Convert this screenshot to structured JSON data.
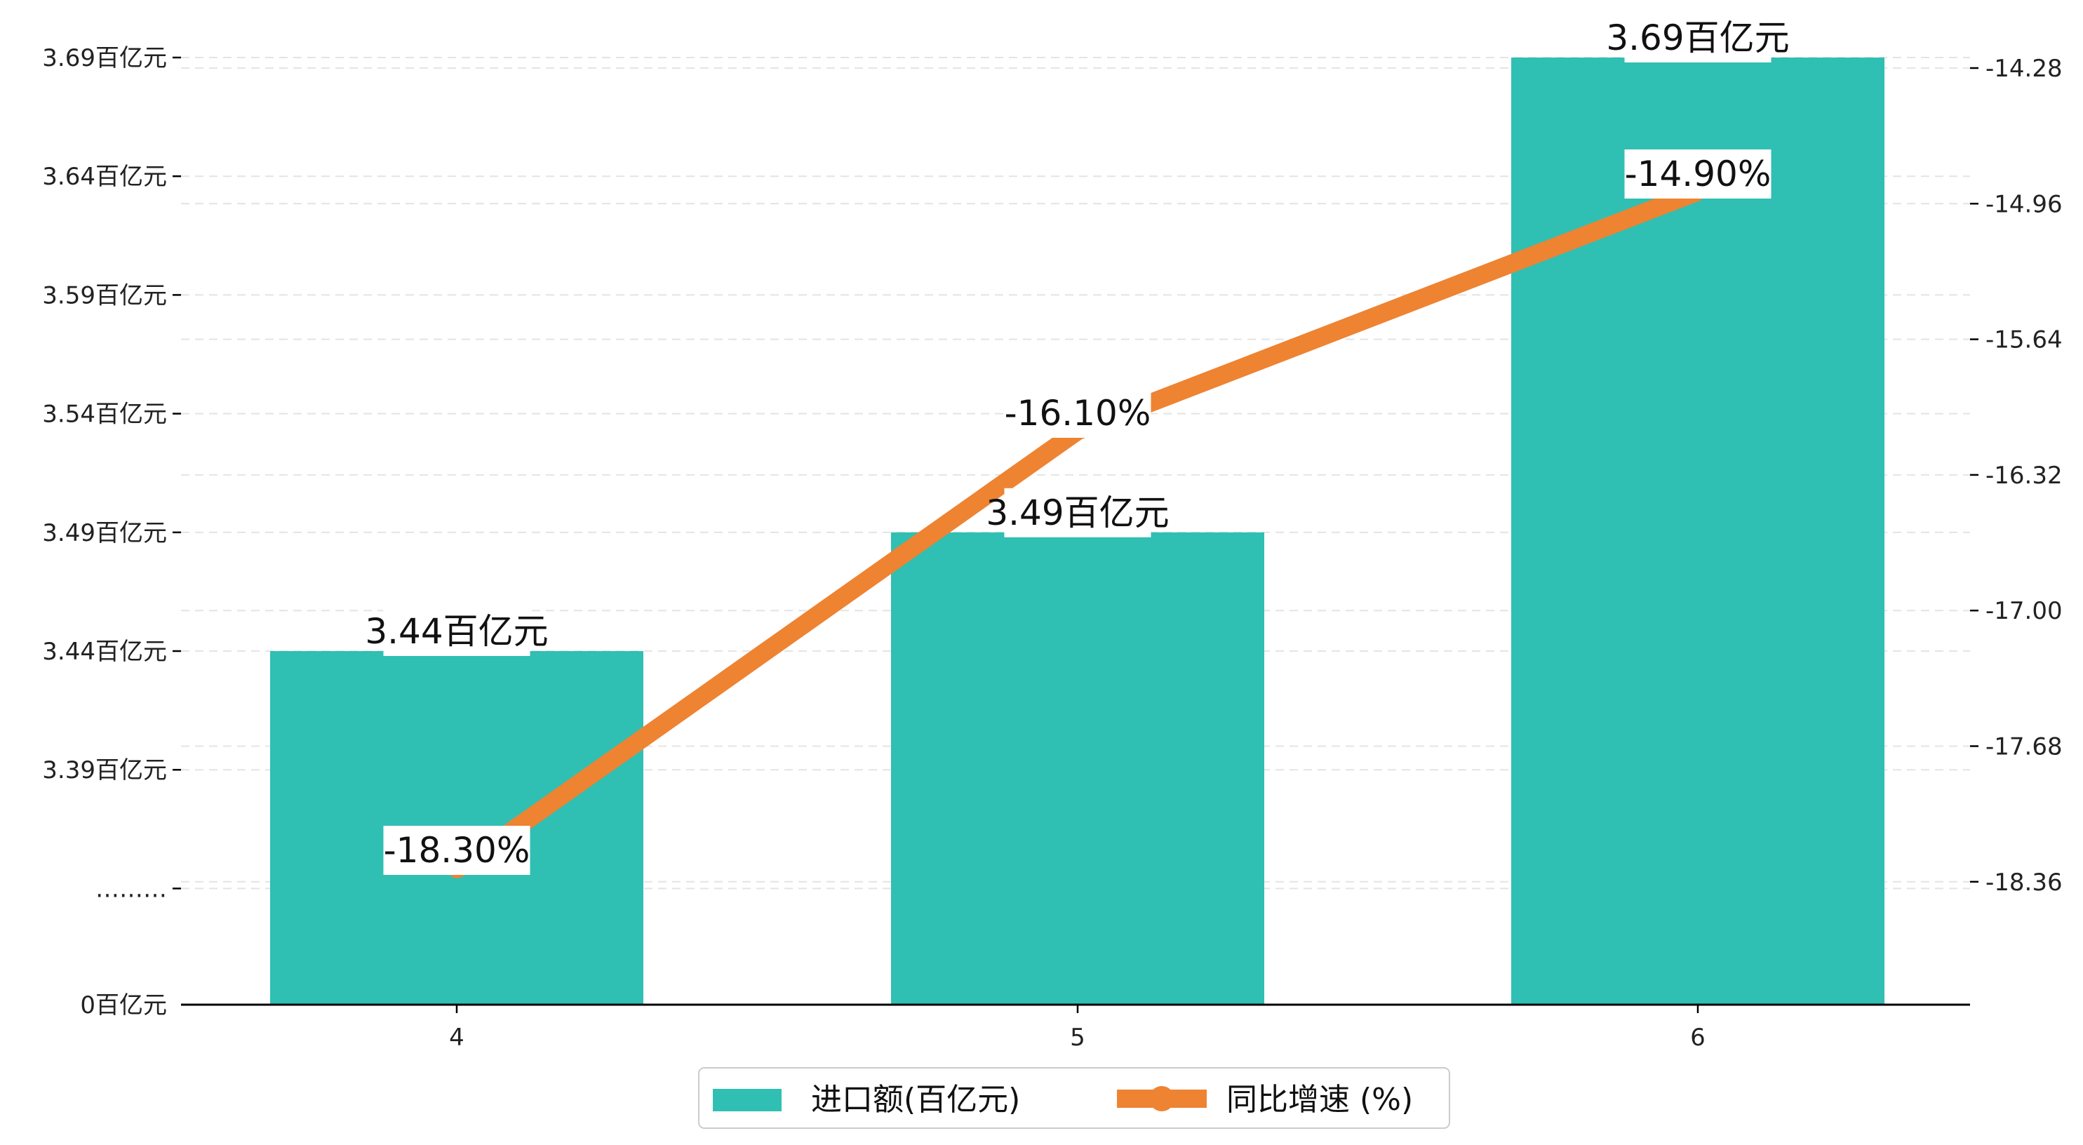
{
  "chart_data": {
    "type": "bar",
    "categories": [
      "4",
      "5",
      "6"
    ],
    "series": [
      {
        "name": "进口额(百亿元)",
        "kind": "bar",
        "axis": "left",
        "color": "#30BFB3",
        "values": [
          3.44,
          3.49,
          3.69
        ],
        "labels": [
          "3.44百亿元",
          "3.49百亿元",
          "3.69百亿元"
        ]
      },
      {
        "name": "同比增速 (%)",
        "kind": "line",
        "axis": "right",
        "color": "#EE8332",
        "values": [
          -18.3,
          -16.1,
          -14.9
        ],
        "labels": [
          "-18.30%",
          "-16.10%",
          "-14.90%"
        ]
      }
    ],
    "y_left": {
      "ticks": [
        {
          "value": 3.34,
          "label": "………"
        },
        {
          "value": 3.39,
          "label": "3.39百亿元"
        },
        {
          "value": 3.44,
          "label": "3.44百亿元"
        },
        {
          "value": 3.49,
          "label": "3.49百亿元"
        },
        {
          "value": 3.54,
          "label": "3.54百亿元"
        },
        {
          "value": 3.59,
          "label": "3.59百亿元"
        },
        {
          "value": 3.64,
          "label": "3.64百亿元"
        },
        {
          "value": 3.69,
          "label": "3.69百亿元"
        }
      ],
      "base_label": "0百亿元",
      "broken_axis": true
    },
    "y_right": {
      "ticks": [
        -18.36,
        -17.68,
        -17.0,
        -16.32,
        -15.64,
        -14.96,
        -14.28
      ],
      "tick_labels": [
        "-18.36",
        "-17.68",
        "-17.00",
        "-16.32",
        "-15.64",
        "-14.96",
        "-14.28"
      ]
    },
    "grid": "horizontal-dashed",
    "legend": {
      "position": "bottom-center",
      "items": [
        "进口额(百亿元)",
        "同比增速 (%)"
      ]
    }
  }
}
